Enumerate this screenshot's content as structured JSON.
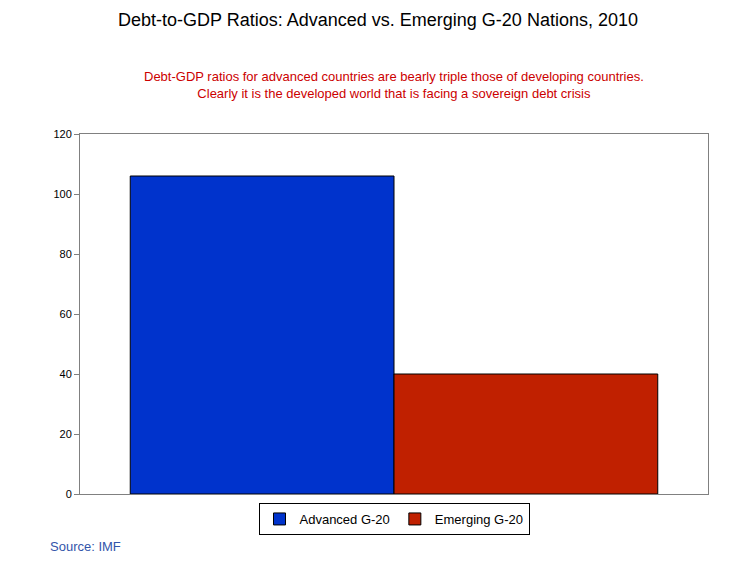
{
  "chart_data": {
    "type": "bar",
    "title": "Debt-to-GDP Ratios: Advanced vs. Emerging G-20 Nations, 2010",
    "subtitle": "Debt-GDP ratios for advanced countries are bearly triple those of developing countries.\nClearly it is the developed world that is facing a sovereign debt crisis",
    "annotations": [
      "Source: IMF"
    ],
    "categories": [
      null
    ],
    "series": [
      {
        "name": "Advanced G-20",
        "color": "#0033cc",
        "values": [
          106
        ]
      },
      {
        "name": "Emerging G-20",
        "color": "#c02000",
        "values": [
          40
        ]
      }
    ],
    "ylim": [
      0,
      120
    ],
    "yticks": [
      0,
      20,
      40,
      60,
      80,
      100,
      120
    ],
    "grid": false,
    "legend": "bottom",
    "tick_labels": "y"
  }
}
